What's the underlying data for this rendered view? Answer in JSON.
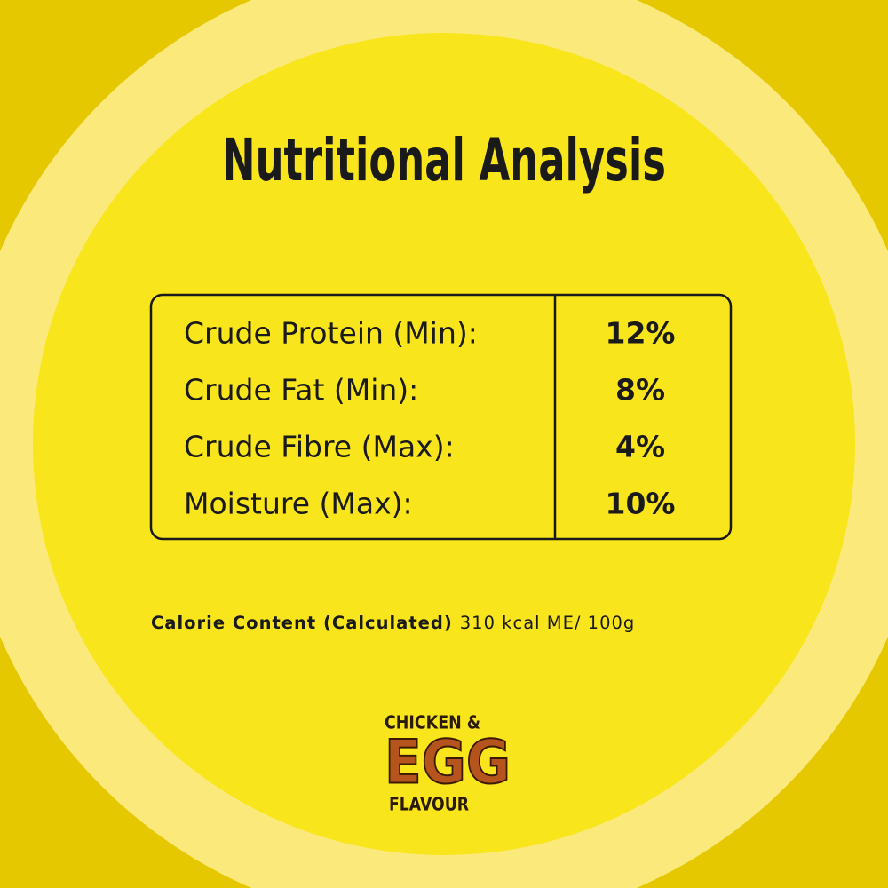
{
  "header": {
    "title": "Nutritional Analysis"
  },
  "table": {
    "rows": [
      [
        "Crude Protein (Min):",
        "12%"
      ],
      [
        "Crude Fat (Min):",
        "8%"
      ],
      [
        "Crude Fibre (Max):",
        "4%"
      ],
      [
        "Moisture (Max):",
        "10%"
      ]
    ]
  },
  "calorie": {
    "label": "Calorie Content (Calculated)",
    "text": "310 kcal ME/ 100g"
  },
  "badge": {
    "top": "CHICKEN &",
    "main": "EGG",
    "bottom": "FLAVOUR"
  }
}
